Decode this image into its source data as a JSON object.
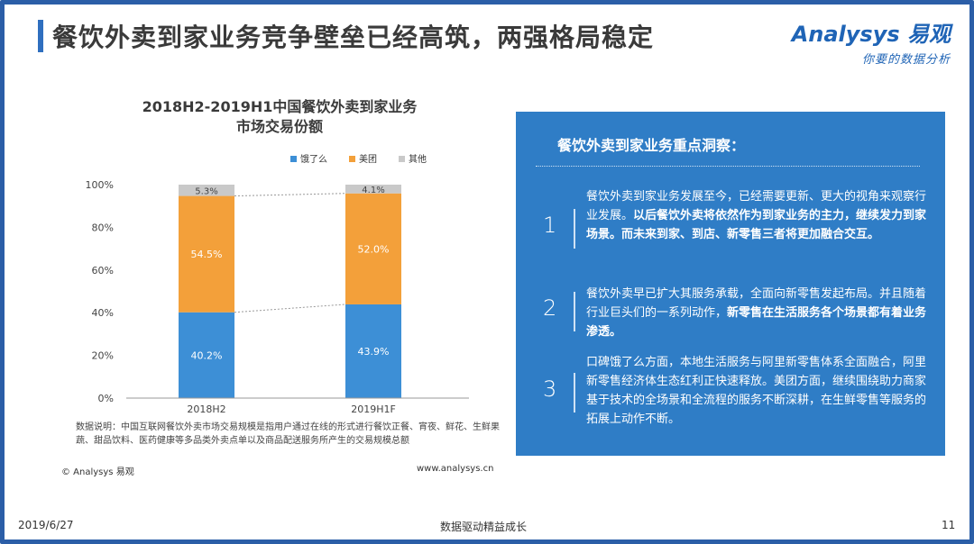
{
  "header": {
    "title": "餐饮外卖到家业务竞争壁垒已经高筑，两强格局稳定",
    "logo_main": "Analysys 易观",
    "logo_sub": "你要的数据分析"
  },
  "chart_data": {
    "type": "bar",
    "stacked": true,
    "title": "2018H2-2019H1中国餐饮外卖到家业务\n市场交易份额",
    "title_line1": "2018H2-2019H1中国餐饮外卖到家业务",
    "title_line2": "市场交易份额",
    "categories": [
      "2018H2",
      "2019H1F"
    ],
    "series": [
      {
        "name": "饿了么",
        "values": [
          40.2,
          43.9
        ],
        "color": "#3d8fd6"
      },
      {
        "name": "美团",
        "values": [
          54.5,
          52.0
        ],
        "color": "#f3a03a"
      },
      {
        "name": "其他",
        "values": [
          5.3,
          4.1
        ],
        "color": "#c9c9c9"
      }
    ],
    "data_labels": [
      [
        "40.2%",
        "43.9%"
      ],
      [
        "54.5%",
        "52.0%"
      ],
      [
        "5.3%",
        "4.1%"
      ]
    ],
    "yticks": [
      "0%",
      "20%",
      "40%",
      "60%",
      "80%",
      "100%"
    ],
    "ylim": [
      0,
      100
    ],
    "legend_position": "top-right",
    "grid": false
  },
  "chart_notes": {
    "note": "数据说明：中国互联网餐饮外卖市场交易规模是指用户通过在线的形式进行餐饮正餐、宵夜、鲜花、生鲜果蔬、甜品饮料、医药健康等多品类外卖点单以及商品配送服务所产生的交易规模总额",
    "copyright": "© Analysys 易观",
    "website": "www.analysys.cn"
  },
  "panel": {
    "title": "餐饮外卖到家业务重点洞察：",
    "items": [
      {
        "num": "1",
        "text_plain": "餐饮外卖到家业务发展至今，已经需要更新、更大的视角来观察行业发展。",
        "text_bold": "以后餐饮外卖将依然作为到家业务的主力，继续发力到家场景。而未来到家、到店、新零售三者将更加融合交互。"
      },
      {
        "num": "2",
        "text_plain": "餐饮外卖早已扩大其服务承载，全面向新零售发起布局。并且随着行业巨头们的一系列动作，",
        "text_bold": "新零售在生活服务各个场景都有着业务渗透。"
      },
      {
        "num": "3",
        "text_plain": "口碑饿了么方面，本地生活服务与阿里新零售体系全面融合，阿里新零售经济体生态红利正快速释放。美团方面，继续围绕助力商家基于技术的全场景和全流程的服务不断深耕，在生鲜零售等服务的拓展上动作不断。",
        "text_bold": ""
      }
    ]
  },
  "footer": {
    "date": "2019/6/27",
    "center": "数据驱动精益成长",
    "page": "11"
  }
}
